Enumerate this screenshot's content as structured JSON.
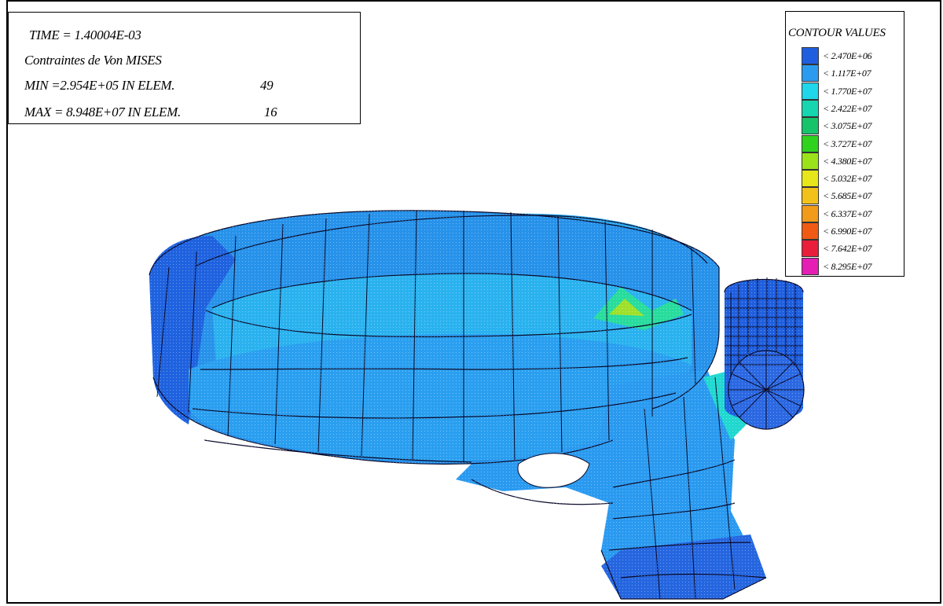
{
  "info": {
    "time": "TIME =  1.40004E-03",
    "title": "Contraintes de Von MISES",
    "min_label": "MIN =2.954E+05  IN ELEM.",
    "min_elem": "49",
    "max_label": "MAX = 8.948E+07  IN ELEM.",
    "max_elem": "16"
  },
  "legend": {
    "title": "CONTOUR VALUES",
    "items": [
      {
        "label": "< 2.470E+06",
        "color": "#1f5fdf"
      },
      {
        "label": "< 1.117E+07",
        "color": "#2b9bf0"
      },
      {
        "label": "< 1.770E+07",
        "color": "#1fd6ea"
      },
      {
        "label": "< 2.422E+07",
        "color": "#16d6b0"
      },
      {
        "label": "< 3.075E+07",
        "color": "#17c46a"
      },
      {
        "label": "< 3.727E+07",
        "color": "#2fd21c"
      },
      {
        "label": "< 4.380E+07",
        "color": "#9be21a"
      },
      {
        "label": "< 5.032E+07",
        "color": "#e6e61a"
      },
      {
        "label": "< 5.685E+07",
        "color": "#f2c21a"
      },
      {
        "label": "< 6.337E+07",
        "color": "#f29a1a"
      },
      {
        "label": "< 6.990E+07",
        "color": "#ef5a14"
      },
      {
        "label": "< 7.642E+07",
        "color": "#e81e3a"
      },
      {
        "label": "< 8.295E+07",
        "color": "#e51eb4"
      }
    ]
  }
}
